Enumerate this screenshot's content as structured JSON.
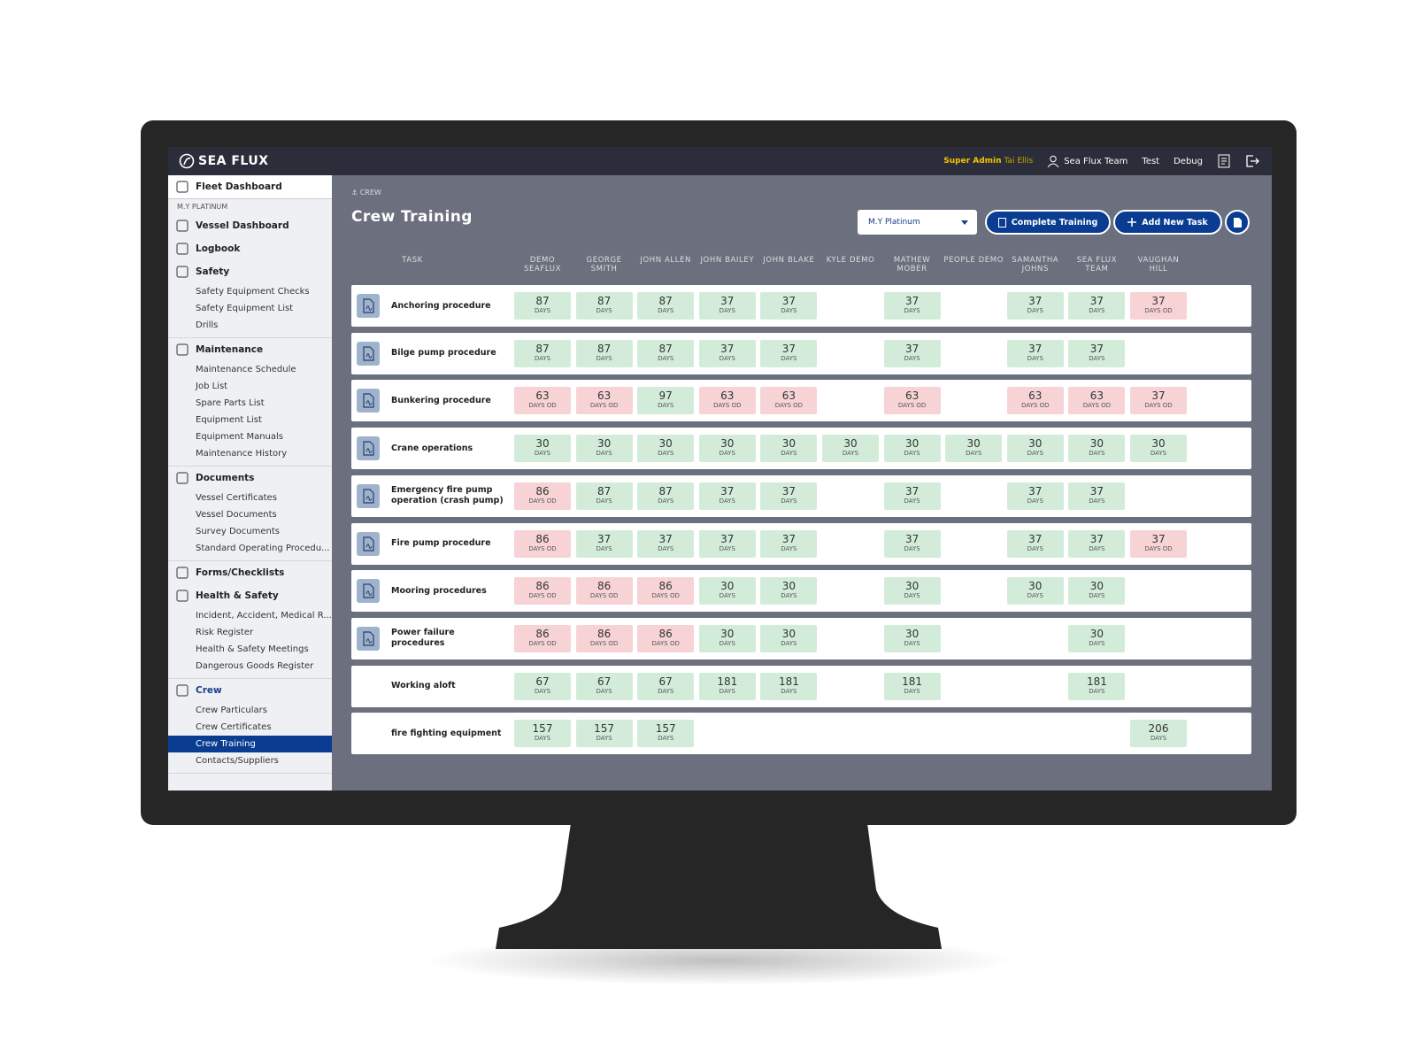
{
  "header": {
    "logo": "SEA FLUX",
    "role": "Super Admin",
    "user": "Tai Ellis",
    "team": "Sea Flux Team",
    "links": [
      "Test",
      "Debug"
    ]
  },
  "sidebar": {
    "items": [
      {
        "label": "Fleet Dashboard",
        "children": []
      },
      {
        "section": "M.Y PLATINUM"
      },
      {
        "label": "Vessel Dashboard",
        "children": []
      },
      {
        "label": "Logbook",
        "children": []
      },
      {
        "label": "Safety",
        "children": [
          {
            "label": "Safety Equipment Checks"
          },
          {
            "label": "Safety Equipment List"
          },
          {
            "label": "Drills"
          }
        ]
      },
      {
        "label": "Maintenance",
        "children": [
          {
            "label": "Maintenance Schedule"
          },
          {
            "label": "Job List"
          },
          {
            "label": "Spare Parts List"
          },
          {
            "label": "Equipment List"
          },
          {
            "label": "Equipment Manuals"
          },
          {
            "label": "Maintenance History"
          }
        ]
      },
      {
        "label": "Documents",
        "children": [
          {
            "label": "Vessel Certificates"
          },
          {
            "label": "Vessel Documents"
          },
          {
            "label": "Survey Documents"
          },
          {
            "label": "Standard Operating Procedu..."
          }
        ]
      },
      {
        "label": "Forms/Checklists",
        "children": []
      },
      {
        "label": "Health & Safety",
        "children": [
          {
            "label": "Incident, Accident, Medical R..."
          },
          {
            "label": "Risk Register"
          },
          {
            "label": "Health & Safety Meetings"
          },
          {
            "label": "Dangerous Goods Register"
          }
        ]
      },
      {
        "label": "Crew",
        "children": [
          {
            "label": "Crew Particulars"
          },
          {
            "label": "Crew Certificates"
          },
          {
            "label": "Crew Training",
            "active": true
          },
          {
            "label": "Contacts/Suppliers"
          }
        ]
      }
    ]
  },
  "page": {
    "breadcrumb": "CREW",
    "title": "Crew Training",
    "vessel_select": "M.Y Platinum",
    "buttons": [
      "Complete Training",
      "Add New Task"
    ]
  },
  "table": {
    "task_header": "TASK",
    "columns": [
      "DEMO SEAFLUX",
      "GEORGE SMITH",
      "JOHN ALLEN",
      "JOHN BAILEY",
      "JOHN BLAKE",
      "KYLE DEMO",
      "MATHEW MOBER",
      "PEOPLE DEMO",
      "SAMANTHA JOHNS",
      "SEA FLUX TEAM",
      "VAUGHAN HILL"
    ],
    "rows": [
      {
        "task": "Anchoring procedure",
        "pdf": true,
        "cells": [
          {
            "value": 87,
            "unit": "DAYS"
          },
          {
            "value": 87,
            "unit": "DAYS"
          },
          {
            "value": 87,
            "unit": "DAYS"
          },
          {
            "value": 37,
            "unit": "DAYS"
          },
          {
            "value": 37,
            "unit": "DAYS"
          },
          null,
          {
            "value": 37,
            "unit": "DAYS"
          },
          null,
          {
            "value": 37,
            "unit": "DAYS"
          },
          {
            "value": 37,
            "unit": "DAYS"
          },
          {
            "value": 37,
            "unit": "DAYS OD",
            "overdue": true
          }
        ]
      },
      {
        "task": "Bilge pump procedure",
        "pdf": true,
        "cells": [
          {
            "value": 87,
            "unit": "DAYS"
          },
          {
            "value": 87,
            "unit": "DAYS"
          },
          {
            "value": 87,
            "unit": "DAYS"
          },
          {
            "value": 37,
            "unit": "DAYS"
          },
          {
            "value": 37,
            "unit": "DAYS"
          },
          null,
          {
            "value": 37,
            "unit": "DAYS"
          },
          null,
          {
            "value": 37,
            "unit": "DAYS"
          },
          {
            "value": 37,
            "unit": "DAYS"
          },
          null
        ]
      },
      {
        "task": "Bunkering procedure",
        "pdf": true,
        "cells": [
          {
            "value": 63,
            "unit": "DAYS OD",
            "overdue": true
          },
          {
            "value": 63,
            "unit": "DAYS OD",
            "overdue": true
          },
          {
            "value": 97,
            "unit": "DAYS"
          },
          {
            "value": 63,
            "unit": "DAYS OD",
            "overdue": true
          },
          {
            "value": 63,
            "unit": "DAYS OD",
            "overdue": true
          },
          null,
          {
            "value": 63,
            "unit": "DAYS OD",
            "overdue": true
          },
          null,
          {
            "value": 63,
            "unit": "DAYS OD",
            "overdue": true
          },
          {
            "value": 63,
            "unit": "DAYS OD",
            "overdue": true
          },
          {
            "value": 37,
            "unit": "DAYS OD",
            "overdue": true
          }
        ]
      },
      {
        "task": "Crane operations",
        "pdf": true,
        "cells": [
          {
            "value": 30,
            "unit": "DAYS"
          },
          {
            "value": 30,
            "unit": "DAYS"
          },
          {
            "value": 30,
            "unit": "DAYS"
          },
          {
            "value": 30,
            "unit": "DAYS"
          },
          {
            "value": 30,
            "unit": "DAYS"
          },
          {
            "value": 30,
            "unit": "DAYS"
          },
          {
            "value": 30,
            "unit": "DAYS"
          },
          {
            "value": 30,
            "unit": "DAYS"
          },
          {
            "value": 30,
            "unit": "DAYS"
          },
          {
            "value": 30,
            "unit": "DAYS"
          },
          {
            "value": 30,
            "unit": "DAYS"
          }
        ]
      },
      {
        "task": "Emergency fire pump operation (crash pump)",
        "pdf": true,
        "cells": [
          {
            "value": 86,
            "unit": "DAYS OD",
            "overdue": true
          },
          {
            "value": 87,
            "unit": "DAYS"
          },
          {
            "value": 87,
            "unit": "DAYS"
          },
          {
            "value": 37,
            "unit": "DAYS"
          },
          {
            "value": 37,
            "unit": "DAYS"
          },
          null,
          {
            "value": 37,
            "unit": "DAYS"
          },
          null,
          {
            "value": 37,
            "unit": "DAYS"
          },
          {
            "value": 37,
            "unit": "DAYS"
          },
          null
        ]
      },
      {
        "task": "Fire pump procedure",
        "pdf": true,
        "cells": [
          {
            "value": 86,
            "unit": "DAYS OD",
            "overdue": true
          },
          {
            "value": 37,
            "unit": "DAYS"
          },
          {
            "value": 37,
            "unit": "DAYS"
          },
          {
            "value": 37,
            "unit": "DAYS"
          },
          {
            "value": 37,
            "unit": "DAYS"
          },
          null,
          {
            "value": 37,
            "unit": "DAYS"
          },
          null,
          {
            "value": 37,
            "unit": "DAYS"
          },
          {
            "value": 37,
            "unit": "DAYS"
          },
          {
            "value": 37,
            "unit": "DAYS OD",
            "overdue": true
          }
        ]
      },
      {
        "task": "Mooring procedures",
        "pdf": true,
        "cells": [
          {
            "value": 86,
            "unit": "DAYS OD",
            "overdue": true
          },
          {
            "value": 86,
            "unit": "DAYS OD",
            "overdue": true
          },
          {
            "value": 86,
            "unit": "DAYS OD",
            "overdue": true
          },
          {
            "value": 30,
            "unit": "DAYS"
          },
          {
            "value": 30,
            "unit": "DAYS"
          },
          null,
          {
            "value": 30,
            "unit": "DAYS"
          },
          null,
          {
            "value": 30,
            "unit": "DAYS"
          },
          {
            "value": 30,
            "unit": "DAYS"
          },
          null
        ]
      },
      {
        "task": "Power failure procedures",
        "pdf": true,
        "cells": [
          {
            "value": 86,
            "unit": "DAYS OD",
            "overdue": true
          },
          {
            "value": 86,
            "unit": "DAYS OD",
            "overdue": true
          },
          {
            "value": 86,
            "unit": "DAYS OD",
            "overdue": true
          },
          {
            "value": 30,
            "unit": "DAYS"
          },
          {
            "value": 30,
            "unit": "DAYS"
          },
          null,
          {
            "value": 30,
            "unit": "DAYS"
          },
          null,
          null,
          {
            "value": 30,
            "unit": "DAYS"
          },
          null
        ]
      },
      {
        "task": "Working aloft",
        "pdf": false,
        "cells": [
          {
            "value": 67,
            "unit": "DAYS"
          },
          {
            "value": 67,
            "unit": "DAYS"
          },
          {
            "value": 67,
            "unit": "DAYS"
          },
          {
            "value": 181,
            "unit": "DAYS"
          },
          {
            "value": 181,
            "unit": "DAYS"
          },
          null,
          {
            "value": 181,
            "unit": "DAYS"
          },
          null,
          null,
          {
            "value": 181,
            "unit": "DAYS"
          },
          null
        ]
      },
      {
        "task": "fire fighting equipment",
        "pdf": false,
        "cells": [
          {
            "value": 157,
            "unit": "DAYS"
          },
          {
            "value": 157,
            "unit": "DAYS"
          },
          {
            "value": 157,
            "unit": "DAYS"
          },
          null,
          null,
          null,
          null,
          null,
          null,
          null,
          {
            "value": 206,
            "unit": "DAYS"
          }
        ]
      }
    ]
  }
}
